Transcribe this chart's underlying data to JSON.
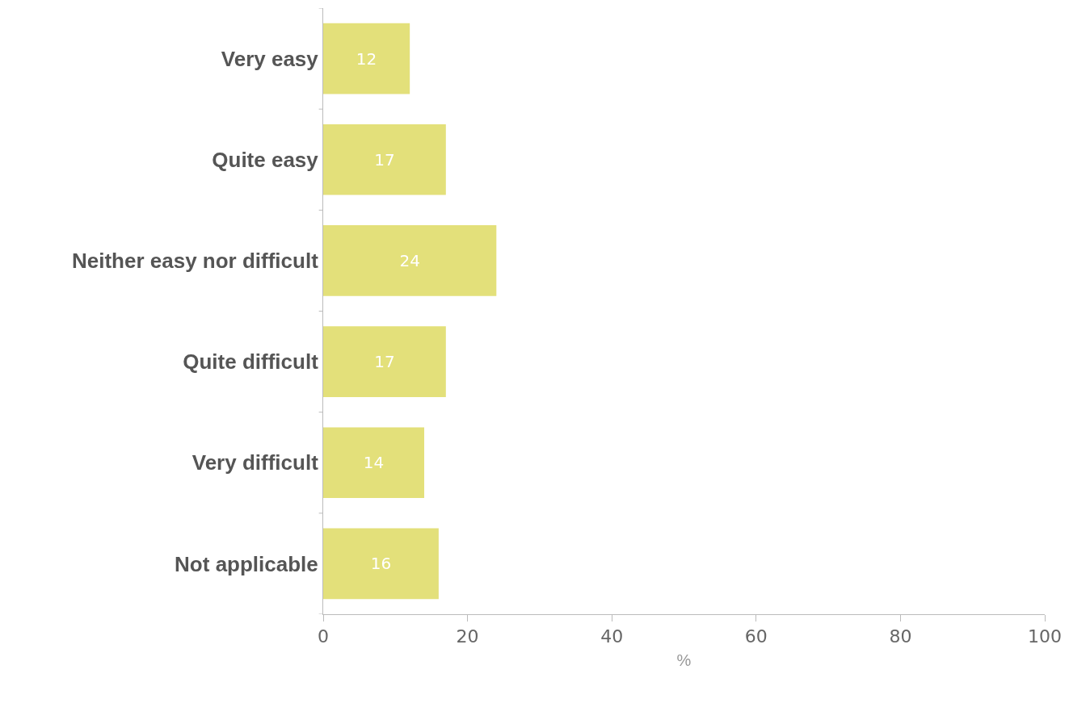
{
  "chart_data": {
    "type": "bar",
    "orientation": "horizontal",
    "categories": [
      "Very easy",
      "Quite easy",
      "Neither easy nor difficult",
      "Quite difficult",
      "Very difficult",
      "Not applicable"
    ],
    "values": [
      12,
      17,
      24,
      17,
      14,
      16
    ],
    "color": "#e3e07a",
    "data_labels": true,
    "xlabel": "%",
    "xlim": [
      0,
      100
    ],
    "xticks": [
      0,
      20,
      40,
      60,
      80,
      100
    ],
    "grid": false,
    "legend": false
  }
}
